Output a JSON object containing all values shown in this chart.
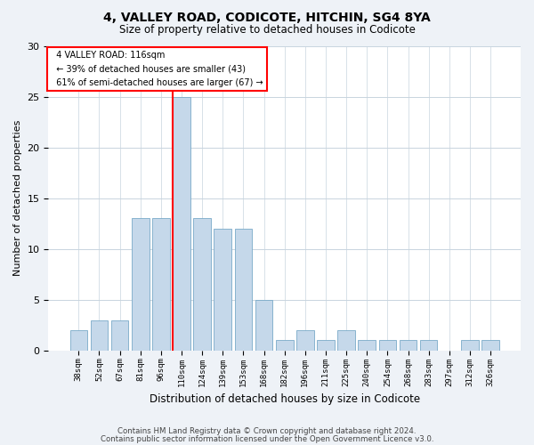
{
  "title1": "4, VALLEY ROAD, CODICOTE, HITCHIN, SG4 8YA",
  "title2": "Size of property relative to detached houses in Codicote",
  "xlabel": "Distribution of detached houses by size in Codicote",
  "ylabel": "Number of detached properties",
  "categories": [
    "38sqm",
    "52sqm",
    "67sqm",
    "81sqm",
    "96sqm",
    "110sqm",
    "124sqm",
    "139sqm",
    "153sqm",
    "168sqm",
    "182sqm",
    "196sqm",
    "211sqm",
    "225sqm",
    "240sqm",
    "254sqm",
    "268sqm",
    "283sqm",
    "297sqm",
    "312sqm",
    "326sqm"
  ],
  "values": [
    2,
    3,
    3,
    13,
    13,
    25,
    13,
    12,
    12,
    5,
    1,
    2,
    1,
    2,
    1,
    1,
    1,
    1,
    0,
    1,
    1
  ],
  "bar_color": "#c5d8ea",
  "bar_edge_color": "#7aaac8",
  "ref_line_index": 5.5,
  "reference_line_label": "4 VALLEY ROAD: 116sqm",
  "annotation_line1": "← 39% of detached houses are smaller (43)",
  "annotation_line2": "61% of semi-detached houses are larger (67) →",
  "ylim": [
    0,
    30
  ],
  "yticks": [
    0,
    5,
    10,
    15,
    20,
    25,
    30
  ],
  "footer1": "Contains HM Land Registry data © Crown copyright and database right 2024.",
  "footer2": "Contains public sector information licensed under the Open Government Licence v3.0.",
  "bg_color": "#eef2f7",
  "plot_bg_color": "#ffffff",
  "grid_color": "#c8d4de"
}
